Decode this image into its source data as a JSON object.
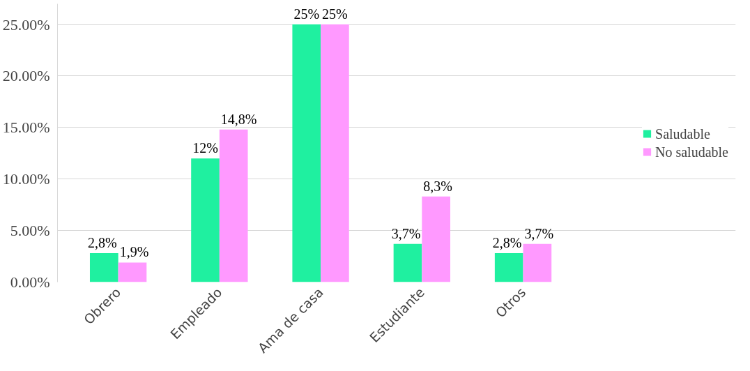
{
  "chart_data": {
    "type": "bar",
    "categories": [
      "Obrero",
      "Empleado",
      "Ama de casa",
      "Estudiante",
      "Otros"
    ],
    "series": [
      {
        "name": "Saludable",
        "color": "#1ff0a0",
        "values": [
          2.8,
          12,
          25,
          3.7,
          2.8
        ],
        "value_labels": [
          "2,8%",
          "12%",
          "25%",
          "3,7%",
          "2,8%"
        ]
      },
      {
        "name": "No saludable",
        "color": "#ff99ff",
        "values": [
          1.9,
          14.8,
          25,
          8.3,
          3.7
        ],
        "value_labels": [
          "1,9%",
          "14,8%",
          "25%",
          "8,3%",
          "3,7%"
        ]
      }
    ],
    "ylim": [
      0,
      27
    ],
    "yticks": [
      {
        "value": 0,
        "label": "0.00%"
      },
      {
        "value": 5,
        "label": "5.00%"
      },
      {
        "value": 10,
        "label": "10.00%"
      },
      {
        "value": 15,
        "label": "15.00%"
      },
      {
        "value": 20,
        "label": "20.00%"
      },
      {
        "value": 25,
        "label": "25.00%"
      }
    ],
    "grid": "y",
    "legend": "right"
  }
}
